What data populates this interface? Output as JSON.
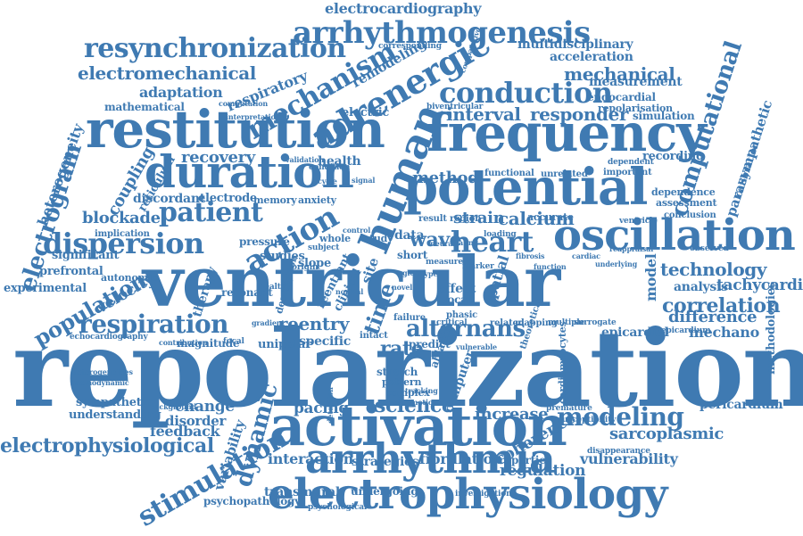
{
  "cloud": {
    "color": "#3f7ab2",
    "background": "#ffffff",
    "words": [
      "repolarization",
      "ventricular",
      "activation",
      "electrophysiology",
      "restitution",
      "frequency",
      "potential",
      "duration",
      "oscillation",
      "human",
      "arrhythmia",
      "arrhythmogenesis",
      "resynchronization",
      "adrenergic",
      "conduction",
      "mechanism",
      "dispersion",
      "patient",
      "heart",
      "action",
      "respiration",
      "alternans",
      "modeling",
      "stimulation",
      "population",
      "electrogram",
      "computational",
      "correlation",
      "electrophysiological",
      "electromechanical",
      "interval",
      "responder",
      "mechanical",
      "science",
      "dynamic",
      "technology",
      "calcium",
      "wave",
      "strain",
      "method",
      "recovery",
      "coupling",
      "blockade",
      "velocity",
      "reentry",
      "rate",
      "time",
      "increase",
      "pacing",
      "change",
      "feedback",
      "sarcoplasmic",
      "coherence",
      "regulation",
      "vulnerability",
      "fibrillation",
      "interaction",
      "strategies",
      "transmural",
      "undergoing",
      "psychopathology",
      "sympathetic",
      "understanding",
      "heterogeneity",
      "significant",
      "prefrontal",
      "experimental",
      "parasympathetic",
      "difference",
      "mechano",
      "epicardial",
      "tachycardia",
      "analysis",
      "pericardium",
      "methodologies",
      "electrocardiography",
      "multidisciplinary",
      "acceleration",
      "measurement",
      "endocardial",
      "simulation",
      "adaptation",
      "mathematical",
      "respiratory",
      "remodeling",
      "reticulum",
      "electric",
      "validation",
      "health",
      "recording",
      "dependence",
      "assessment",
      "discordant",
      "electrode",
      "memory",
      "anxiety",
      "slope",
      "studies",
      "whole",
      "specific",
      "predict",
      "stretch",
      "pattern",
      "complex",
      "spatial",
      "properties",
      "variability",
      "disorder",
      "magnitude",
      "autonomic",
      "implication",
      "pressure",
      "resonant",
      "therapy",
      "effect",
      "local",
      "phasic",
      "ablation",
      "computer",
      "premature",
      "susceptibility",
      "disappearance",
      "model",
      "calibration",
      "investigation",
      "psychological",
      "detection",
      "origin",
      "healthy",
      "focal",
      "unipolar",
      "echocardiography",
      "heterogeneities",
      "haemodynamic",
      "background",
      "contribution",
      "functional",
      "unrelated",
      "dependent",
      "important",
      "corresponding",
      "comparative",
      "computation",
      "interpretation",
      "repolarisation",
      "biventricular",
      "accurate",
      "conclusion",
      "ventricle",
      "observed",
      "reappraisal",
      "epicardium",
      "condition",
      "region",
      "result",
      "site",
      "data",
      "study",
      "short",
      "failure",
      "critical",
      "related",
      "mapping",
      "multiple",
      "surrogate",
      "vulnerable",
      "theoretical",
      "cardiomyocytes",
      "intact",
      "clinical",
      "reentrant",
      "subject",
      "description",
      "gradient",
      "loading",
      "marker",
      "measure",
      "type",
      "global",
      "novel",
      "neural",
      "scaling",
      "tracking",
      "emotion",
      "normal",
      "control",
      "cycle",
      "signal",
      "fibrosis",
      "function",
      "cardiac",
      "underlying"
    ]
  }
}
